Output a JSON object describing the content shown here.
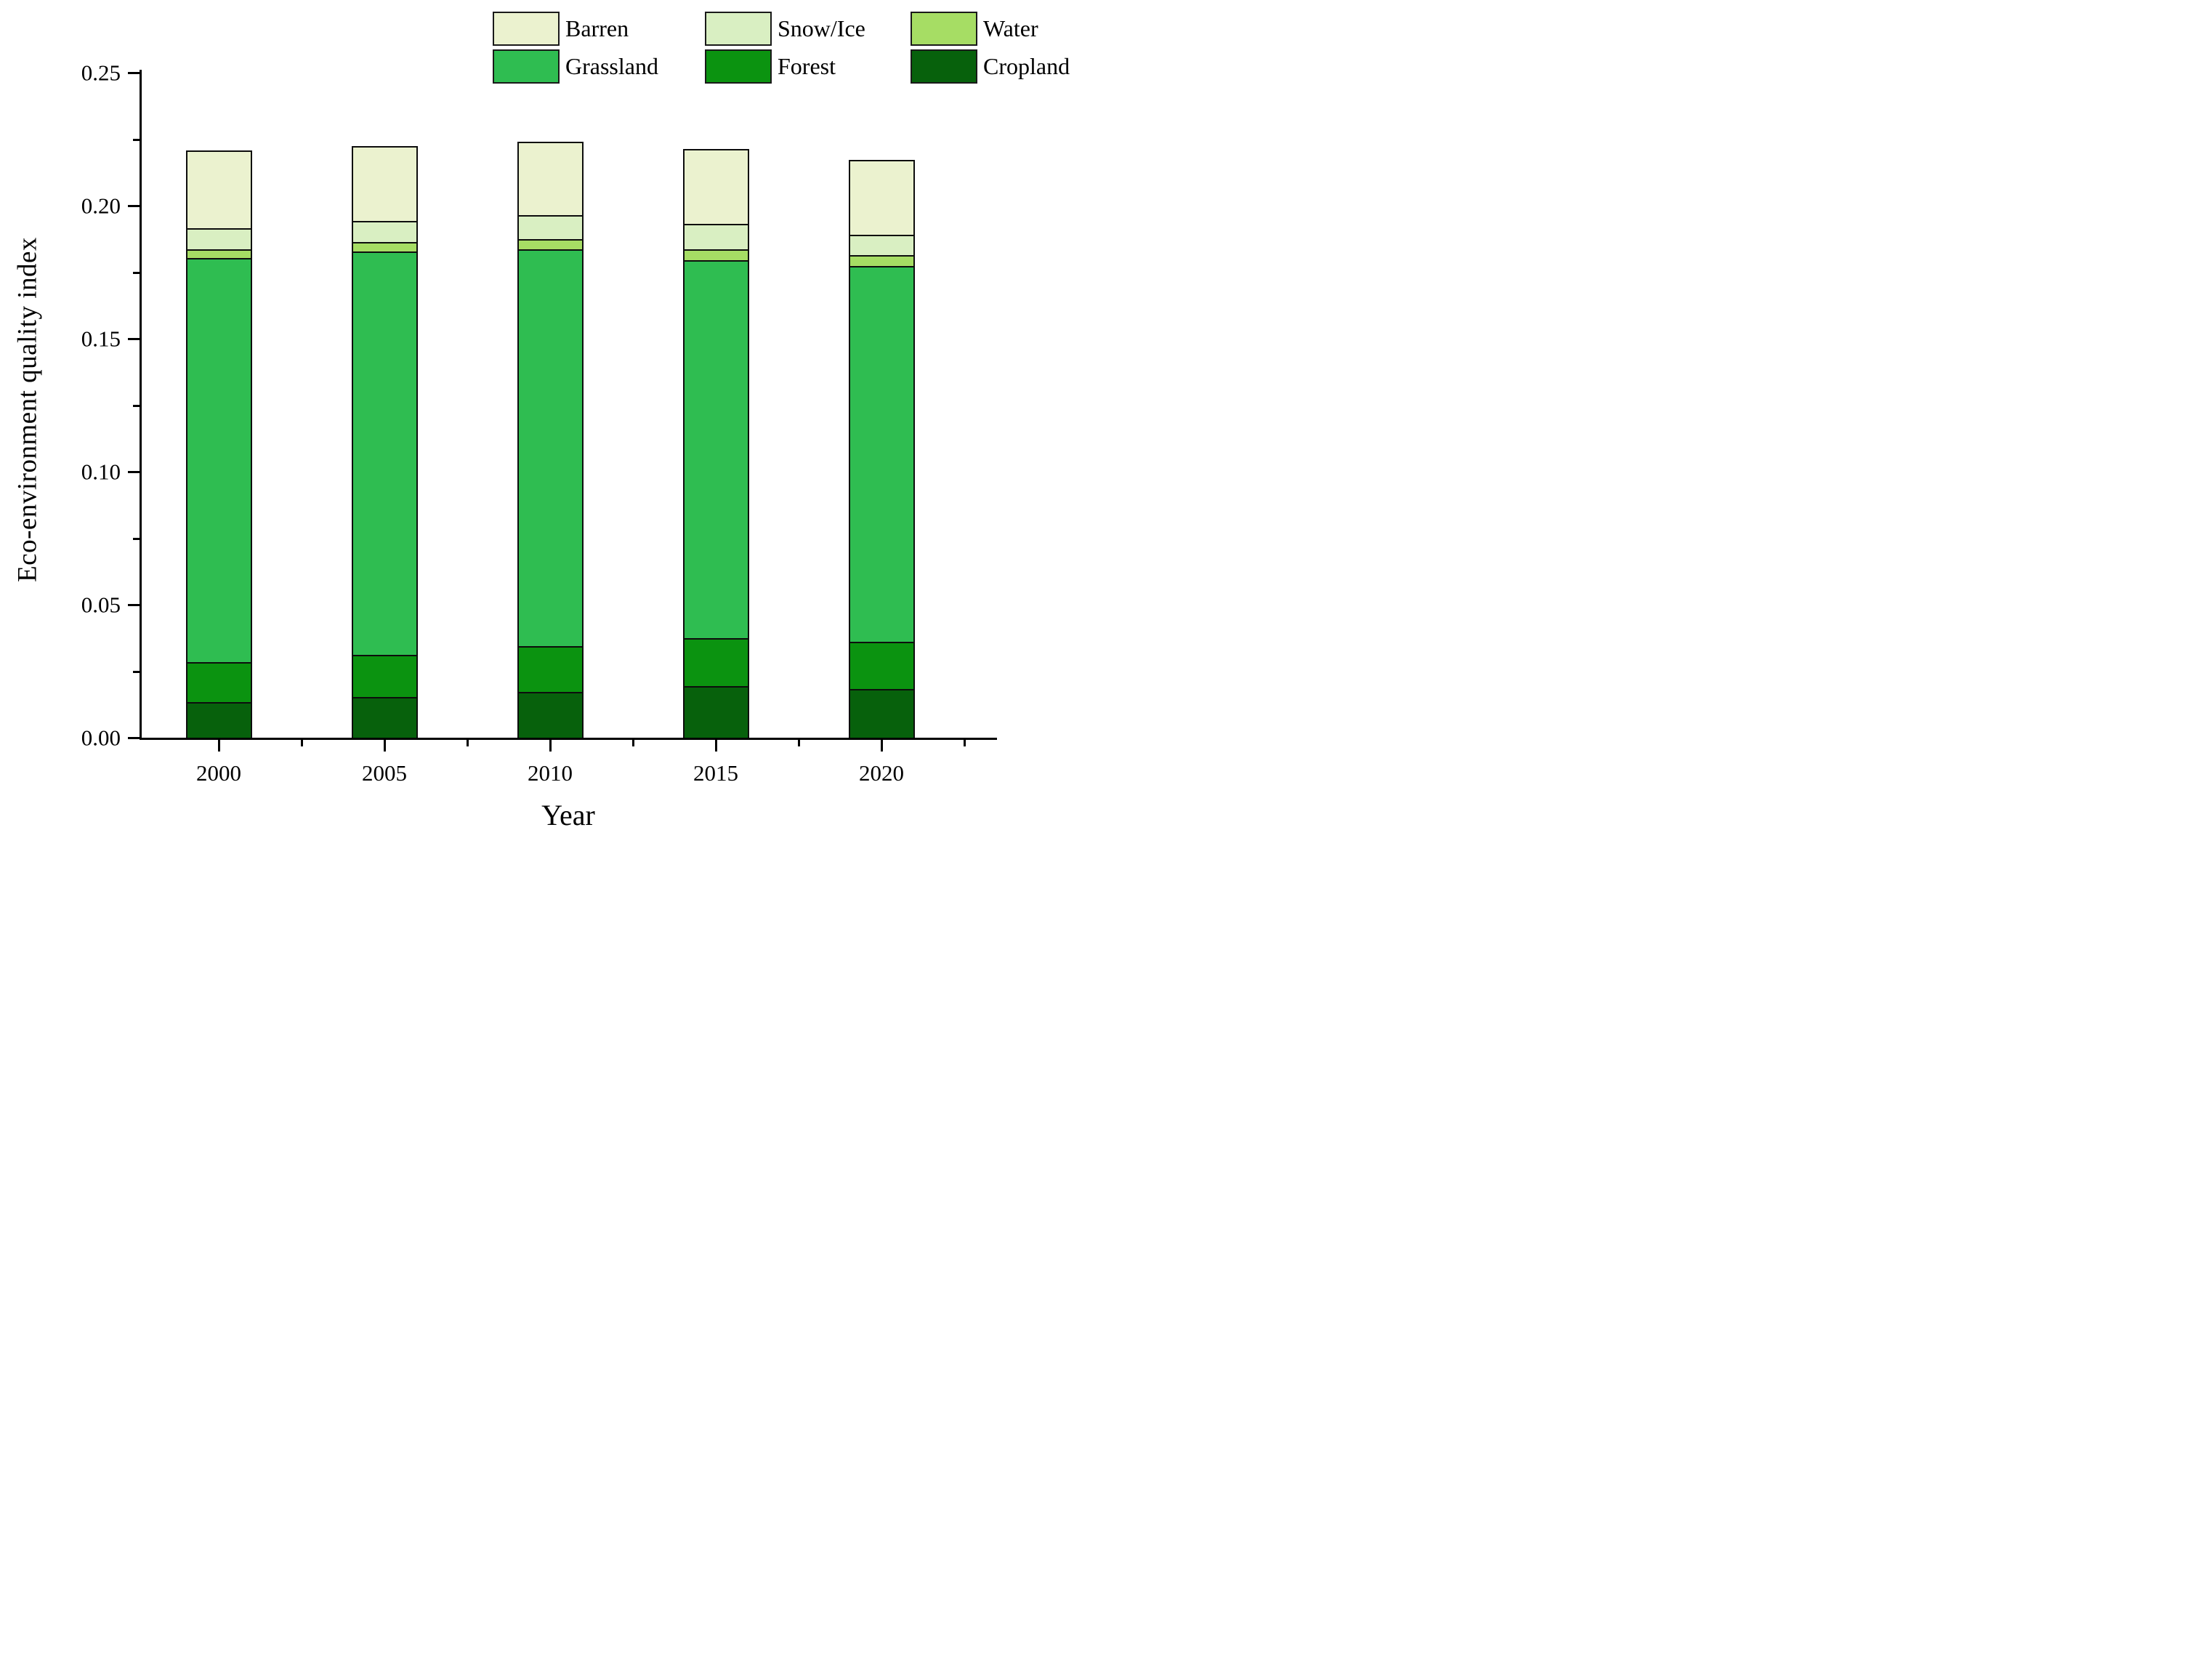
{
  "figure": {
    "background": "#ffffff",
    "axis_color": "#000000",
    "bar_border_color": "#0d0d0d"
  },
  "axes": {
    "ylabel": "Eco-environment quality index",
    "xlabel": "Year",
    "y_tick_labels": [
      "0.00",
      "0.05",
      "0.10",
      "0.15",
      "0.20",
      "0.25"
    ],
    "y_tick_values": [
      0.0,
      0.05,
      0.1,
      0.15,
      0.2,
      0.25
    ],
    "y_minor_tick_values": [
      0.025,
      0.075,
      0.125,
      0.175,
      0.225
    ],
    "x_tick_labels": [
      "2000",
      "2005",
      "2010",
      "2015",
      "2020"
    ]
  },
  "legend": {
    "rows": [
      [
        {
          "label": "Barren",
          "color": "#ebf2cf"
        },
        {
          "label": "Snow/Ice",
          "color": "#d9efc2"
        },
        {
          "label": "Water",
          "color": "#a6dd64"
        }
      ],
      [
        {
          "label": "Grassland",
          "color": "#2fbd51"
        },
        {
          "label": "Forest",
          "color": "#0b9310"
        },
        {
          "label": "Cropland",
          "color": "#07610c"
        }
      ]
    ]
  },
  "chart_data": {
    "type": "bar",
    "stacked": true,
    "title": "",
    "xlabel": "Year",
    "ylabel": "Eco-environment quality index",
    "categories": [
      "2000",
      "2005",
      "2010",
      "2015",
      "2020"
    ],
    "series": [
      {
        "name": "Cropland",
        "color": "#07610c",
        "values": [
          0.0133,
          0.0153,
          0.0171,
          0.0194,
          0.0182
        ]
      },
      {
        "name": "Forest",
        "color": "#0b9310",
        "values": [
          0.015,
          0.0158,
          0.0174,
          0.0179,
          0.018
        ]
      },
      {
        "name": "Grassland",
        "color": "#2fbd51",
        "values": [
          0.152,
          0.1516,
          0.149,
          0.1421,
          0.1411
        ]
      },
      {
        "name": "Water",
        "color": "#a6dd64",
        "values": [
          0.0032,
          0.0037,
          0.004,
          0.0041,
          0.0041
        ]
      },
      {
        "name": "Snow/Ice",
        "color": "#d9efc2",
        "values": [
          0.008,
          0.0079,
          0.0089,
          0.0098,
          0.0078
        ]
      },
      {
        "name": "Barren",
        "color": "#ebf2cf",
        "values": [
          0.0292,
          0.028,
          0.0277,
          0.028,
          0.028
        ]
      }
    ],
    "bar_totals": [
      0.2207,
      0.2223,
      0.2241,
      0.2213,
      0.2172
    ],
    "ylim": [
      0,
      0.25
    ],
    "y_major_step": 0.05,
    "y_minor_step": 0.025,
    "grid": false,
    "legend_position": "top-right",
    "stack_order_bottom_to_top": [
      "Cropland",
      "Forest",
      "Grassland",
      "Water",
      "Snow/Ice",
      "Barren"
    ]
  }
}
